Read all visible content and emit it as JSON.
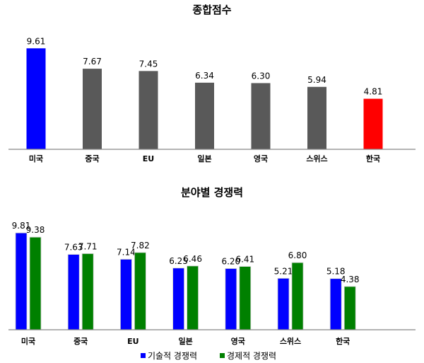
{
  "chart_data": [
    {
      "type": "bar",
      "title": "종합점수",
      "categories": [
        "미국",
        "중국",
        "EU",
        "일본",
        "영국",
        "스위스",
        "한국"
      ],
      "values": [
        9.61,
        7.67,
        7.45,
        6.34,
        6.3,
        5.94,
        4.81
      ],
      "colors": [
        "#0000ff",
        "#595959",
        "#595959",
        "#595959",
        "#595959",
        "#595959",
        "#ff0000"
      ],
      "ylim": [
        0,
        10
      ],
      "grid": false
    },
    {
      "type": "bar",
      "title": "분야별 경쟁력",
      "categories": [
        "미국",
        "중국",
        "EU",
        "일본",
        "영국",
        "스위스",
        "한국"
      ],
      "series": [
        {
          "name": "기술적 경쟁력",
          "color": "#0000ff",
          "values": [
            9.81,
            7.63,
            7.14,
            6.25,
            6.2,
            5.21,
            5.18
          ]
        },
        {
          "name": "경제적 경쟁력",
          "color": "#008000",
          "values": [
            9.38,
            7.71,
            7.82,
            6.46,
            6.41,
            6.8,
            4.38
          ]
        }
      ],
      "ylim": [
        0,
        10
      ],
      "legend": "bottom",
      "grid": false
    }
  ]
}
